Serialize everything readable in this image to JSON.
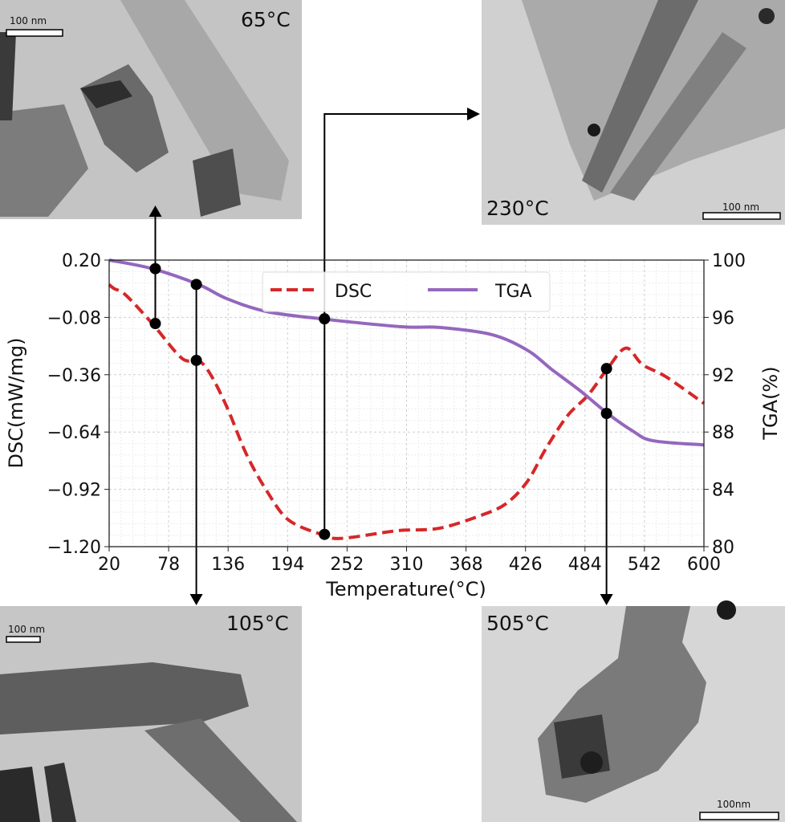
{
  "images": [
    {
      "label": "65°C",
      "scale_bar": "100 nm"
    },
    {
      "label": "230°C",
      "scale_bar": "100 nm"
    },
    {
      "label": "105°C",
      "scale_bar": "100 nm"
    },
    {
      "label": "505°C",
      "scale_bar": "100nm"
    }
  ],
  "chart_data": {
    "type": "line",
    "xlabel": "Temperature(°C)",
    "ylabel": "DSC(mW/mg)",
    "y2label": "TGA(%)",
    "xlim": [
      20,
      600
    ],
    "ylim": [
      -1.2,
      0.2
    ],
    "y2lim": [
      80,
      100
    ],
    "xticks": [
      "20",
      "78",
      "136",
      "194",
      "252",
      "310",
      "368",
      "426",
      "484",
      "542",
      "600"
    ],
    "yticks": [
      "0.20",
      "−0.08",
      "−0.36",
      "−0.64",
      "−0.92",
      "−1.20"
    ],
    "y2ticks": [
      "100",
      "96",
      "92",
      "88",
      "84",
      "80"
    ],
    "grid": true,
    "legend_position": "top-center",
    "series": [
      {
        "name": "DSC",
        "axis": "left",
        "color": "#d62728",
        "style": "dashed",
        "x": [
          20,
          25,
          36,
          62,
          91,
          107,
          119,
          135,
          154,
          174,
          195,
          227,
          245,
          289,
          305,
          342,
          381,
          407,
          428,
          446,
          467,
          487,
          506,
          524,
          540,
          563,
          600
        ],
        "y": [
          0.08,
          0.06,
          0.03,
          -0.11,
          -0.28,
          -0.29,
          -0.36,
          -0.52,
          -0.75,
          -0.93,
          -1.07,
          -1.14,
          -1.16,
          -1.13,
          -1.12,
          -1.11,
          -1.05,
          -0.99,
          -0.88,
          -0.72,
          -0.56,
          -0.46,
          -0.33,
          -0.23,
          -0.31,
          -0.37,
          -0.5
        ]
      },
      {
        "name": "TGA",
        "axis": "right",
        "color": "#9467bd",
        "style": "solid",
        "x": [
          20,
          62,
          107,
          135,
          174,
          227,
          305,
          342,
          393,
          428,
          451,
          479,
          506,
          530,
          550,
          600
        ],
        "y": [
          100,
          99.4,
          98.3,
          97.3,
          96.4,
          95.9,
          95.35,
          95.3,
          94.8,
          93.7,
          92.4,
          90.9,
          89.3,
          88.1,
          87.4,
          87.1
        ]
      }
    ],
    "markers": [
      {
        "temperature": 65,
        "dsc": -0.11,
        "tga": 99.4,
        "image": "65°C"
      },
      {
        "temperature": 105,
        "dsc": -0.29,
        "tga": 98.3,
        "image": "105°C"
      },
      {
        "temperature": 230,
        "dsc": -1.14,
        "tga": 95.9,
        "image": "230°C"
      },
      {
        "temperature": 505,
        "dsc": -0.33,
        "tga": 89.3,
        "image": "505°C"
      }
    ]
  }
}
